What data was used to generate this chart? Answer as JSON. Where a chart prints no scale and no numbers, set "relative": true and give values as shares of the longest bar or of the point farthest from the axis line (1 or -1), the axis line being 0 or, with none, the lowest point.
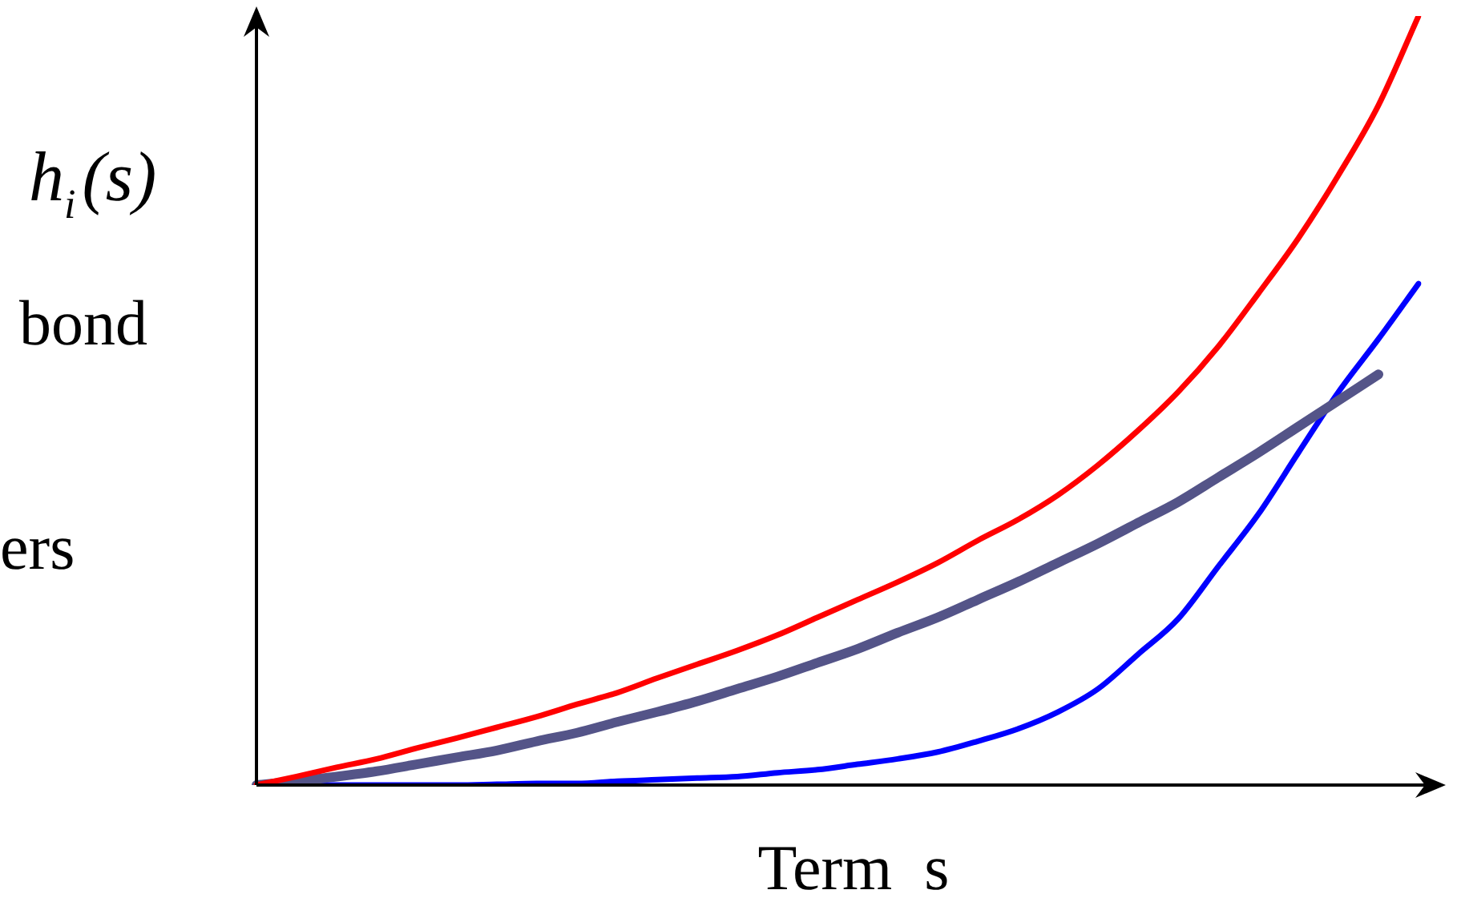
{
  "chart_data": {
    "type": "line",
    "relative": true,
    "ylabel": "h$_{i}$(s)",
    "xlabel": "Term  s",
    "annotations": [
      "bond",
      "ers"
    ],
    "legend": false,
    "marker": "none",
    "line_style": "solid",
    "categories": [
      null,
      null,
      null,
      null,
      null,
      null,
      null,
      null,
      null,
      null,
      null,
      null,
      null,
      null,
      null,
      null,
      null,
      null,
      null,
      null,
      null,
      null,
      null,
      null,
      null,
      null,
      null,
      null,
      null,
      null
    ],
    "series": [
      {
        "color": "#ff0000",
        "values": [
          0,
          0.011,
          0.023,
          0.034,
          0.048,
          0.061,
          0.075,
          0.089,
          0.105,
          0.12,
          0.139,
          0.157,
          0.175,
          0.195,
          0.218,
          0.241,
          0.264,
          0.289,
          0.318,
          0.345,
          0.377,
          0.416,
          0.461,
          0.511,
          0.57,
          0.639,
          0.711,
          0.793,
          0.884,
          1
        ]
      },
      {
        "color": "#545488",
        "values": [
          0,
          0.005,
          0.011,
          0.018,
          0.027,
          0.036,
          0.045,
          0.057,
          0.068,
          0.082,
          0.095,
          0.109,
          0.125,
          0.141,
          0.159,
          0.177,
          0.198,
          0.218,
          0.241,
          0.264,
          0.289,
          0.314,
          0.341,
          0.368,
          0.4,
          0.432,
          0.466,
          0.5,
          0.534,
          null
        ]
      },
      {
        "color": "#0000ff",
        "values": [
          0,
          0,
          0,
          0,
          0,
          0,
          0.001,
          0.002,
          0.002,
          0.005,
          0.007,
          0.009,
          0.011,
          0.016,
          0.02,
          0.027,
          0.034,
          0.043,
          0.057,
          0.073,
          0.095,
          0.125,
          0.17,
          0.216,
          0.284,
          0.352,
          0.432,
          0.511,
          0.58,
          0.652
        ]
      }
    ]
  }
}
